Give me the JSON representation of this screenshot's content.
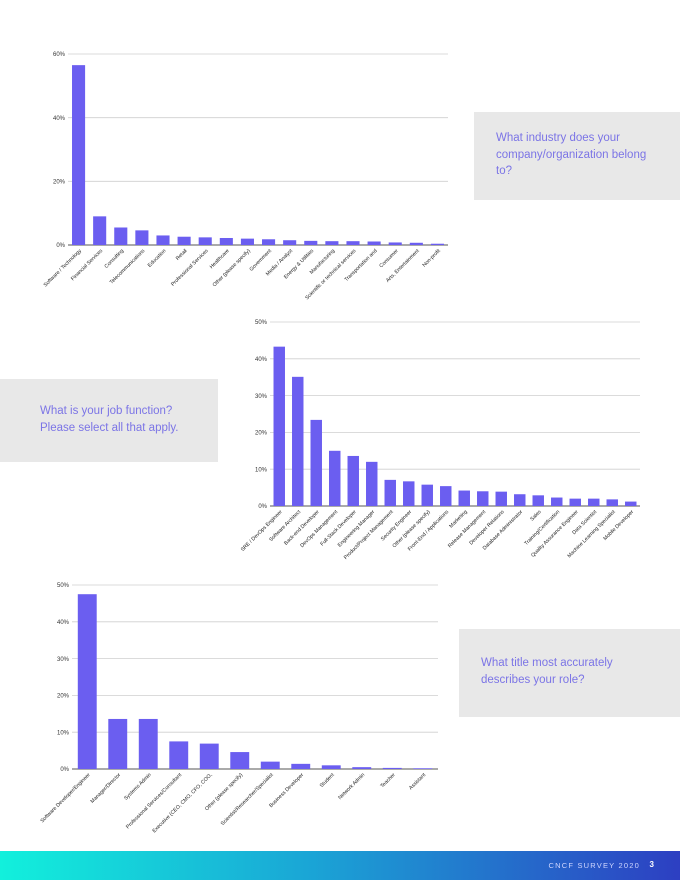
{
  "chart_data": [
    {
      "type": "bar",
      "categories": [
        "Software / Technology",
        "Financial Services",
        "Consulting",
        "Telecommunications",
        "Education",
        "Retail",
        "Professional Services",
        "Healthcare",
        "Other (please specify)",
        "Government",
        "Media / Analyst",
        "Energy & Utilities",
        "Manufacturing",
        "Scientific or technical services",
        "Transportation and",
        "Consumer",
        "Arts, Entertainment",
        "Non-profit"
      ],
      "values": [
        56.5,
        9,
        5.5,
        4.6,
        3,
        2.6,
        2.4,
        2.2,
        2,
        1.8,
        1.5,
        1.3,
        1.2,
        1.2,
        1.1,
        0.8,
        0.7,
        0.4
      ],
      "yticks": [
        "0%",
        "20%",
        "40%",
        "60%"
      ],
      "ylim": [
        0,
        60
      ],
      "grid": true,
      "color": "#6b5ef0"
    },
    {
      "type": "bar",
      "categories": [
        "SRE / DevOps Engineer",
        "Software Architect",
        "Back-end Developer",
        "DevOps Management",
        "Full-Stack Developer",
        "Engineering Manager",
        "Product/Project Management",
        "Security Engineer",
        "Other (please specify)",
        "Front-End / Applications",
        "Marketing",
        "Release Management",
        "Developer Relations",
        "Database Administrator",
        "Sales",
        "Training/Certification",
        "Quality Assurance Engineer",
        "Data Scientist",
        "Machine Learning Specialist",
        "Mobile Developer"
      ],
      "values": [
        43.3,
        35.1,
        23.4,
        15,
        13.6,
        12,
        7.1,
        6.7,
        5.8,
        5.4,
        4.2,
        4,
        3.9,
        3.2,
        2.9,
        2.3,
        2,
        2,
        1.8,
        1.2
      ],
      "yticks": [
        "0%",
        "10%",
        "20%",
        "30%",
        "40%",
        "50%"
      ],
      "ylim": [
        0,
        50
      ],
      "grid": true,
      "color": "#6b5ef0"
    },
    {
      "type": "bar",
      "categories": [
        "Software Developer/Engineer",
        "Manager/Director",
        "Systems Admin",
        "Professional Services/Consultant",
        "Executive (CEO, CMO, CFO, COO,",
        "Other (please specify)",
        "Scientist/Researcher/Specialist",
        "Business Developer",
        "Student",
        "Network Admin",
        "Teacher",
        "Assistant"
      ],
      "values": [
        47.5,
        13.6,
        13.6,
        7.5,
        6.9,
        4.6,
        2,
        1.4,
        1,
        0.5,
        0.3,
        0.2
      ],
      "yticks": [
        "0%",
        "10%",
        "20%",
        "30%",
        "40%",
        "50%"
      ],
      "ylim": [
        0,
        50
      ],
      "grid": true,
      "color": "#6b5ef0"
    }
  ],
  "questions": {
    "q1": "What industry does your company/organization belong to?",
    "q2": "What is your job function? Please select all that apply.",
    "q3": "What title most accurately describes your role?"
  },
  "footer": {
    "label": "CNCF SURVEY 2020",
    "page": "3"
  }
}
